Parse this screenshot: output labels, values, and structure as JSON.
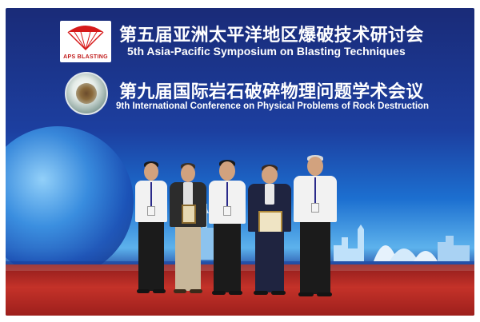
{
  "banner": {
    "line1_zh": "第五届亚洲太平洋地区爆破技术研讨会",
    "line2_en": "5th Asia-Pacific Symposium on Blasting Techniques",
    "line3_zh": "第九届国际岩石破碎物理问题学术会议",
    "line4_en": "9th International Conference on Physical Problems of Rock Destruction",
    "logo_text": "APS BLASTING"
  },
  "colors": {
    "backdrop_top": "#1a2b78",
    "backdrop_mid": "#1c6fd0",
    "carpet": "#c43229",
    "logo_red": "#c01818"
  },
  "people": [
    {
      "name": "person-1",
      "shirt": "#f2f2f2",
      "jacket": "",
      "pants": "#1b1b1b",
      "holding": ""
    },
    {
      "name": "person-2",
      "shirt": "#e0e0e0",
      "jacket": "#2c2c2c",
      "pants": "#c8b79a",
      "holding": "plaque"
    },
    {
      "name": "person-3",
      "shirt": "#f2f2f2",
      "jacket": "",
      "pants": "#1b1b1b",
      "holding": ""
    },
    {
      "name": "person-4",
      "shirt": "#e8e8e8",
      "jacket": "#1f2440",
      "pants": "#1f2440",
      "holding": "certificate"
    },
    {
      "name": "person-5",
      "shirt": "#f2f2f2",
      "jacket": "",
      "pants": "#1b1b1b",
      "holding": ""
    }
  ]
}
